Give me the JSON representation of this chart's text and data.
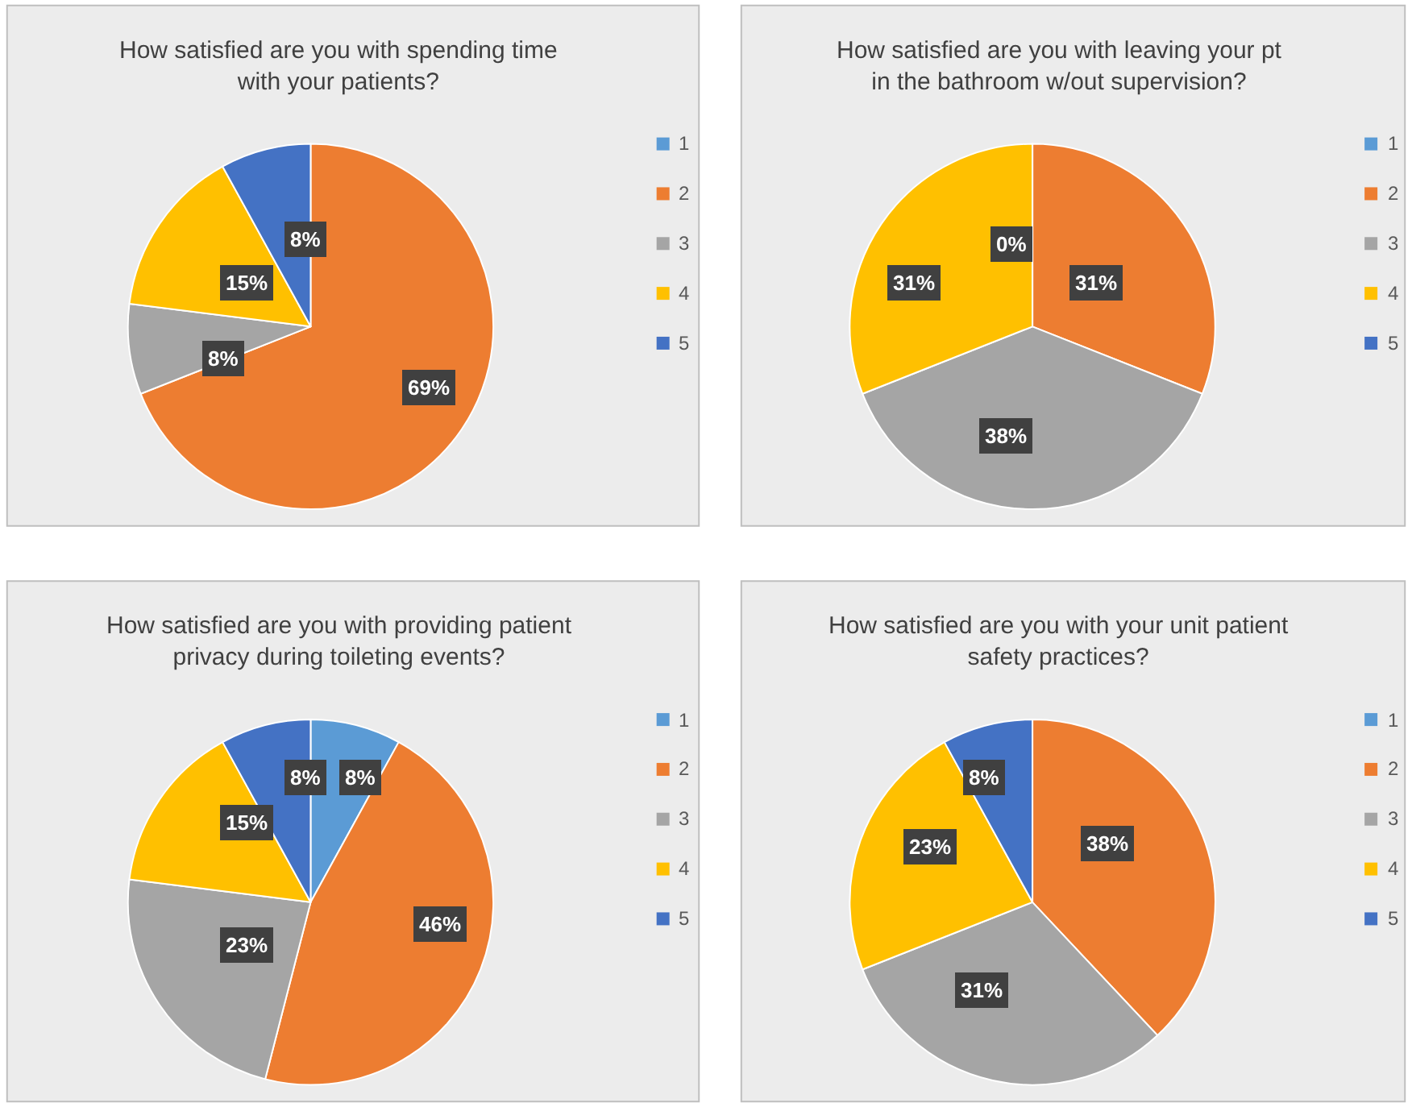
{
  "chart_data": [
    {
      "type": "pie",
      "title": "How satisfied are you with spending time with your patients?",
      "categories": [
        "1",
        "2",
        "3",
        "4",
        "5"
      ],
      "values": [
        0,
        69,
        8,
        15,
        8
      ],
      "value_labels": [
        null,
        "69%",
        "8%",
        "15%",
        "8%"
      ],
      "colors": [
        "#5b9bd5",
        "#ed7d31",
        "#a5a5a5",
        "#ffc000",
        "#4472c4"
      ],
      "legend": "right"
    },
    {
      "type": "pie",
      "title": "How satisfied are you with leaving your pt in the bathroom w/out supervision?",
      "categories": [
        "1",
        "2",
        "3",
        "4",
        "5"
      ],
      "values": [
        0,
        31,
        38,
        31,
        0
      ],
      "value_labels": [
        "0%",
        "31%",
        "38%",
        "31%",
        null
      ],
      "colors": [
        "#5b9bd5",
        "#ed7d31",
        "#a5a5a5",
        "#ffc000",
        "#4472c4"
      ],
      "legend": "right"
    },
    {
      "type": "pie",
      "title": "How satisfied are you with providing patient privacy during toileting events?",
      "categories": [
        "1",
        "2",
        "3",
        "4",
        "5"
      ],
      "values": [
        8,
        46,
        23,
        15,
        8
      ],
      "value_labels": [
        "8%",
        "46%",
        "23%",
        "15%",
        "8%"
      ],
      "colors": [
        "#5b9bd5",
        "#ed7d31",
        "#a5a5a5",
        "#ffc000",
        "#4472c4"
      ],
      "legend": "right"
    },
    {
      "type": "pie",
      "title": "How satisfied are you with your unit patient safety practices?",
      "categories": [
        "1",
        "2",
        "3",
        "4",
        "5"
      ],
      "values": [
        0,
        38,
        31,
        23,
        8
      ],
      "value_labels": [
        null,
        "38%",
        "31%",
        "23%",
        "8%"
      ],
      "colors": [
        "#5b9bd5",
        "#ed7d31",
        "#a5a5a5",
        "#ffc000",
        "#4472c4"
      ],
      "legend": "right"
    }
  ]
}
